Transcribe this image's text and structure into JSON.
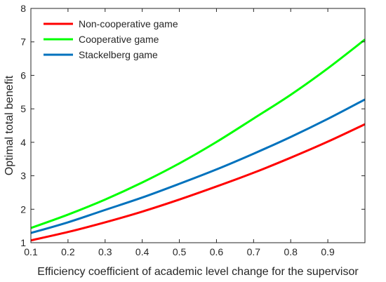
{
  "chart_data": {
    "type": "line",
    "xlabel": "Efficiency coefficient of academic level change for the supervisor",
    "ylabel": "Optimal total benefit",
    "xlim": [
      0.1,
      1.0
    ],
    "ylim": [
      1,
      8
    ],
    "xticks": [
      "0.1",
      "0.2",
      "0.3",
      "0.4",
      "0.5",
      "0.6",
      "0.7",
      "0.8",
      "0.9"
    ],
    "yticks": [
      "1",
      "2",
      "3",
      "4",
      "5",
      "6",
      "7",
      "8"
    ],
    "legend_position": "top-left",
    "grid": false,
    "x": [
      0.1,
      0.2,
      0.3,
      0.4,
      0.5,
      0.6,
      0.7,
      0.8,
      0.9,
      1.0
    ],
    "series": [
      {
        "name": "Non-cooperative game",
        "color": "#ff0000",
        "values": [
          1.07,
          1.32,
          1.61,
          1.93,
          2.29,
          2.68,
          3.09,
          3.54,
          4.02,
          4.54
        ]
      },
      {
        "name": "Cooperative game",
        "color": "#00ff00",
        "values": [
          1.44,
          1.84,
          2.29,
          2.8,
          3.37,
          4.01,
          4.71,
          5.42,
          6.21,
          7.07
        ]
      },
      {
        "name": "Stackelberg game",
        "color": "#0072bd",
        "values": [
          1.29,
          1.61,
          1.98,
          2.35,
          2.76,
          3.19,
          3.66,
          4.16,
          4.7,
          5.28
        ]
      }
    ]
  }
}
